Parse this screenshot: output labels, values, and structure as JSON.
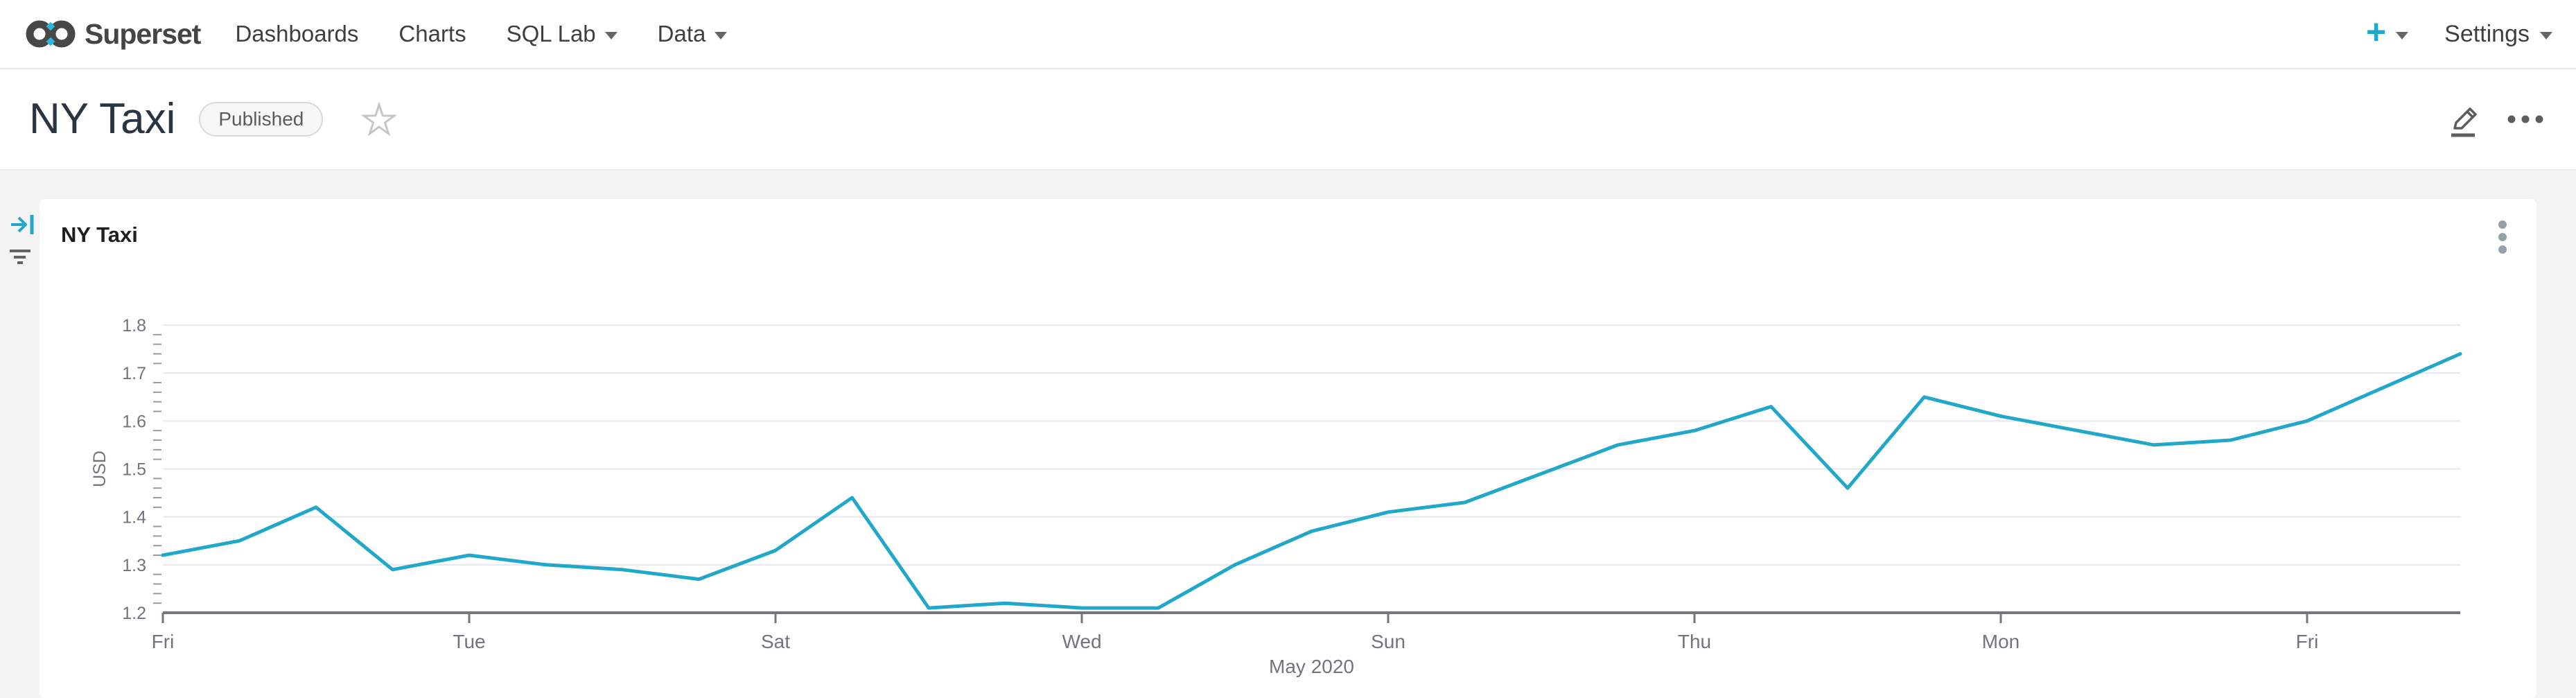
{
  "nav": {
    "brand": "Superset",
    "items": [
      {
        "label": "Dashboards",
        "has_menu": false
      },
      {
        "label": "Charts",
        "has_menu": false
      },
      {
        "label": "SQL Lab",
        "has_menu": true
      },
      {
        "label": "Data",
        "has_menu": true
      }
    ],
    "new_label": "+",
    "settings_label": "Settings"
  },
  "header": {
    "title": "NY Taxi",
    "status_badge": "Published"
  },
  "colors": {
    "accent": "#20a7c9",
    "line": "#20a7c9",
    "axis": "#75757e",
    "grid": "#e3e7f0",
    "tick_text": "#73737d",
    "page_background": "#f4f4f5",
    "card_background": "#ffffff"
  },
  "chart_data": {
    "type": "line",
    "title": "NY Taxi",
    "ylabel": "USD",
    "xlabel": "May 2020",
    "ylim": [
      1.2,
      1.8
    ],
    "y_major_step": 0.1,
    "y_minor_step": 0.02,
    "grid": "horizontal",
    "legend": "none",
    "x_description": "Daily values across May 2020, first point Fri May 1, last point Sun May 31; x ticks every 4 days",
    "x_tick_labels": [
      "Fri",
      "Tue",
      "Sat",
      "Wed",
      "Sun",
      "Thu",
      "Mon",
      "Fri"
    ],
    "x_tick_indices": [
      0,
      4,
      8,
      12,
      16,
      20,
      24,
      28
    ],
    "point_days": [
      "Fri",
      "Sat",
      "Sun",
      "Mon",
      "Tue",
      "Wed",
      "Thu",
      "Fri",
      "Sat",
      "Sun",
      "Mon",
      "Tue",
      "Wed",
      "Thu",
      "Fri",
      "Sat",
      "Sun",
      "Mon",
      "Tue",
      "Wed",
      "Thu",
      "Fri",
      "Sat",
      "Sun",
      "Mon",
      "Tue",
      "Wed",
      "Thu",
      "Fri",
      "Sat",
      "Sun"
    ],
    "values": [
      1.32,
      1.35,
      1.42,
      1.29,
      1.32,
      1.3,
      1.29,
      1.27,
      1.33,
      1.44,
      1.21,
      1.22,
      1.21,
      1.21,
      1.3,
      1.37,
      1.41,
      1.43,
      1.49,
      1.55,
      1.58,
      1.63,
      1.46,
      1.65,
      1.61,
      1.58,
      1.55,
      1.56,
      1.6,
      1.67,
      1.74
    ],
    "series_color": "#20a7c9"
  }
}
